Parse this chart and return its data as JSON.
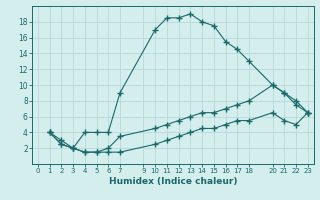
{
  "xlabel": "Humidex (Indice chaleur)",
  "bg_color": "#d4eeee",
  "grid_color": "#b8d8d8",
  "line_color": "#1a6868",
  "xlim": [
    -0.5,
    23.5
  ],
  "ylim": [
    0,
    20
  ],
  "xticks": [
    0,
    1,
    2,
    3,
    4,
    5,
    6,
    7,
    9,
    10,
    11,
    12,
    13,
    14,
    15,
    16,
    17,
    18,
    20,
    21,
    22,
    23
  ],
  "yticks": [
    2,
    4,
    6,
    8,
    10,
    12,
    14,
    16,
    18
  ],
  "line1_x": [
    1,
    2,
    3,
    4,
    5,
    6,
    7,
    10,
    11,
    12,
    13,
    14,
    15,
    16,
    17,
    18,
    20,
    21,
    22,
    23
  ],
  "line1_y": [
    4,
    3,
    2,
    4,
    4,
    4,
    9,
    17,
    18.5,
    18.5,
    19,
    18,
    17.5,
    15.5,
    14.5,
    13,
    10,
    9,
    7.5,
    6.5
  ],
  "line2_x": [
    1,
    2,
    3,
    4,
    5,
    6,
    7,
    10,
    11,
    12,
    13,
    14,
    15,
    16,
    17,
    18,
    20,
    21,
    22,
    23
  ],
  "line2_y": [
    4,
    2.5,
    2,
    1.5,
    1.5,
    2,
    3.5,
    4.5,
    5,
    5.5,
    6,
    6.5,
    6.5,
    7,
    7.5,
    8,
    10,
    9,
    8,
    6.5
  ],
  "line3_x": [
    1,
    2,
    3,
    4,
    5,
    6,
    7,
    10,
    11,
    12,
    13,
    14,
    15,
    16,
    17,
    18,
    20,
    21,
    22,
    23
  ],
  "line3_y": [
    4,
    2.5,
    2,
    1.5,
    1.5,
    1.5,
    1.5,
    2.5,
    3,
    3.5,
    4,
    4.5,
    4.5,
    5,
    5.5,
    5.5,
    6.5,
    5.5,
    5,
    6.5
  ]
}
